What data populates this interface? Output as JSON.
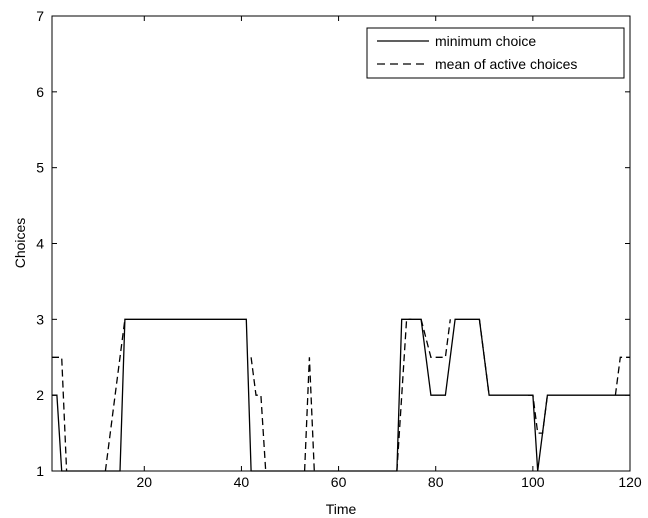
{
  "chart_data": {
    "type": "line",
    "title": "",
    "xlabel": "Time",
    "ylabel": "Choices",
    "xlim": [
      1,
      120
    ],
    "ylim": [
      1,
      7
    ],
    "xticks": [
      20,
      40,
      60,
      80,
      100,
      120
    ],
    "yticks": [
      1,
      2,
      3,
      4,
      5,
      6,
      7
    ],
    "legend_position": "top-right",
    "grid": false,
    "series": [
      {
        "name": "minimum choice",
        "style": "solid",
        "color": "#000000",
        "x": [
          1,
          2,
          3,
          15,
          16,
          41,
          42,
          72,
          73,
          77,
          79,
          82,
          84,
          89,
          91,
          99,
          100,
          101,
          103,
          120
        ],
        "y": [
          2,
          2,
          1,
          1,
          3,
          3,
          1,
          1,
          3,
          3,
          2,
          2,
          3,
          3,
          2,
          2,
          2,
          1,
          2,
          2
        ]
      },
      {
        "name": "mean of active choices",
        "style": "dashed",
        "color": "#000000",
        "segments": [
          {
            "x": [
              1,
              3,
              4
            ],
            "y": [
              2.5,
              2.5,
              1
            ]
          },
          {
            "x": [
              12,
              14,
              16
            ],
            "y": [
              1,
              2,
              3
            ]
          },
          {
            "x": [
              42,
              43,
              44,
              45
            ],
            "y": [
              2.5,
              2,
              2,
              1
            ]
          },
          {
            "x": [
              53,
              54,
              55
            ],
            "y": [
              1,
              2.5,
              1
            ]
          },
          {
            "x": [
              72,
              74,
              75
            ],
            "y": [
              1,
              3,
              3
            ]
          },
          {
            "x": [
              77,
              79,
              80,
              82,
              83
            ],
            "y": [
              3,
              2.5,
              2.5,
              2.5,
              3
            ]
          },
          {
            "x": [
              89,
              90,
              91
            ],
            "y": [
              3,
              2.5,
              2
            ]
          },
          {
            "x": [
              99,
              100,
              101,
              102,
              103
            ],
            "y": [
              2,
              2,
              1.5,
              1.5,
              2
            ]
          },
          {
            "x": [
              117,
              118,
              120
            ],
            "y": [
              2,
              2.5,
              2.5
            ]
          }
        ]
      }
    ]
  }
}
